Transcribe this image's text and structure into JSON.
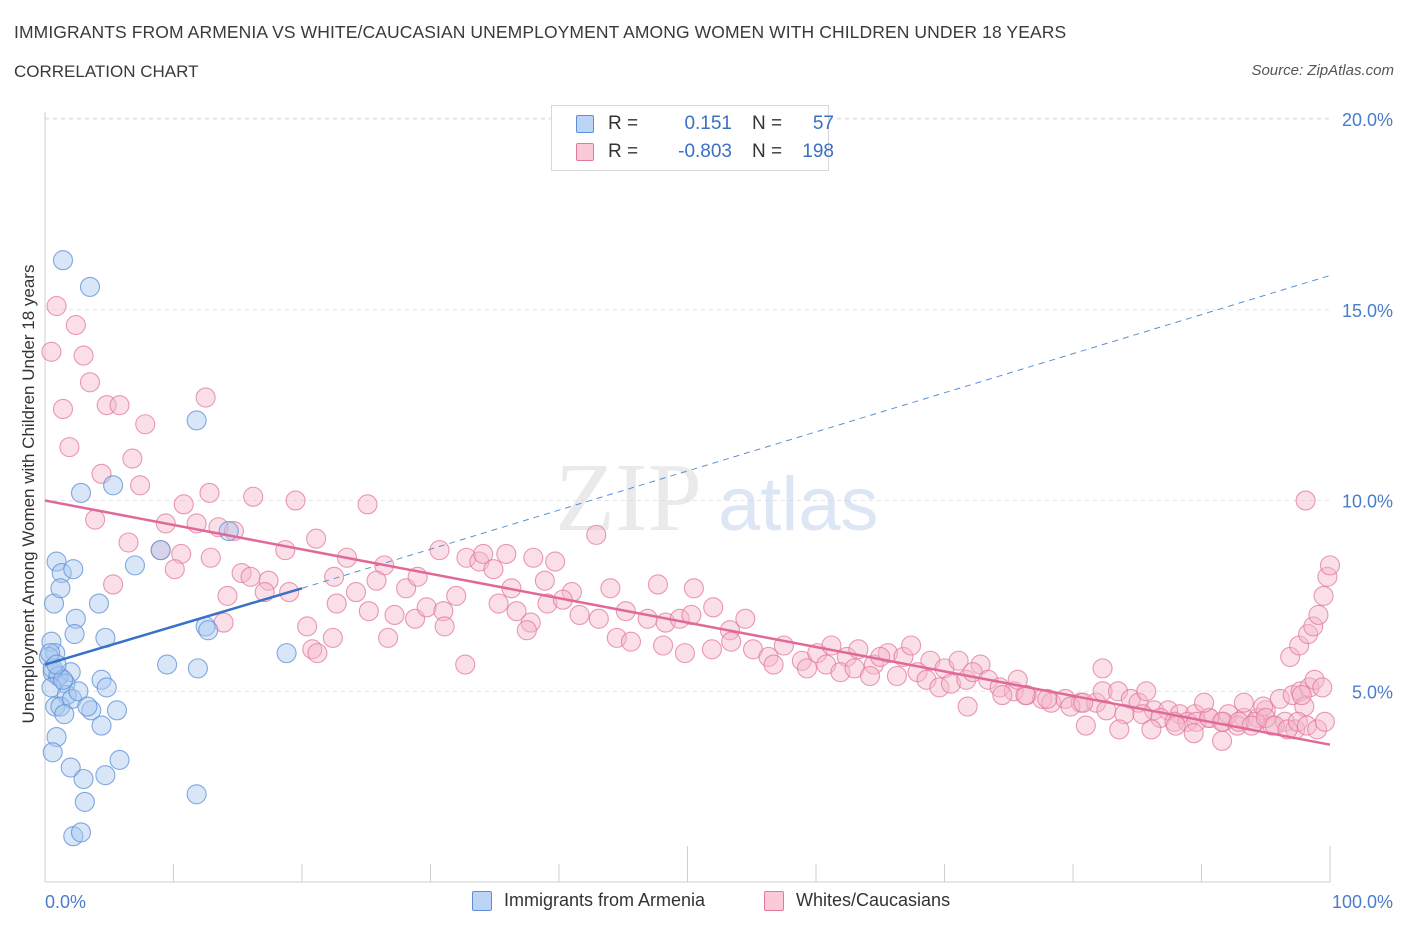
{
  "title": "IMMIGRANTS FROM ARMENIA VS WHITE/CAUCASIAN UNEMPLOYMENT AMONG WOMEN WITH CHILDREN UNDER 18 YEARS",
  "subtitle": "CORRELATION CHART",
  "source": "Source: ZipAtlas.com",
  "watermark": {
    "zip": "ZIP",
    "atlas": "atlas"
  },
  "legend": {
    "r_label": "R =",
    "n_label": "N =",
    "rows": [
      {
        "series": "Immigrants from Armenia",
        "r": "0.151",
        "n": "57",
        "color": "#a9c8f0",
        "stroke": "#5b8fd6"
      },
      {
        "series": "Whites/Caucasians",
        "r": "-0.803",
        "n": "198",
        "color": "#f5b7cb",
        "stroke": "#e3789c"
      }
    ]
  },
  "chart_data": {
    "type": "scatter",
    "title": "IMMIGRANTS FROM ARMENIA VS WHITE/CAUCASIAN UNEMPLOYMENT AMONG WOMEN WITH CHILDREN UNDER 18 YEARS",
    "xlabel": "",
    "ylabel": "Unemployment Among Women with Children Under 18 years",
    "xlim": [
      0,
      100
    ],
    "ylim": [
      0,
      20.5
    ],
    "x_tick_labels": [
      "0.0%",
      "100.0%"
    ],
    "y_ticks": [
      5,
      10,
      15,
      20
    ],
    "y_tick_labels": [
      "5.0%",
      "10.0%",
      "15.0%",
      "20.0%"
    ],
    "grid": true,
    "legend_position": "top-center",
    "series": [
      {
        "name": "Immigrants from Armenia",
        "color": "#5b8fd6",
        "fill": "#a9c8f0",
        "trend": {
          "x": [
            0,
            20
          ],
          "y": [
            5.7,
            7.7
          ],
          "extend_dashed_to": [
            100,
            15.9
          ]
        },
        "points": [
          [
            1.4,
            16.3
          ],
          [
            3.5,
            15.6
          ],
          [
            11.8,
            12.1
          ],
          [
            2.8,
            10.2
          ],
          [
            5.3,
            10.4
          ],
          [
            9.0,
            8.7
          ],
          [
            14.3,
            9.2
          ],
          [
            0.9,
            8.4
          ],
          [
            1.3,
            8.1
          ],
          [
            2.2,
            8.2
          ],
          [
            7.0,
            8.3
          ],
          [
            0.7,
            7.3
          ],
          [
            4.2,
            7.3
          ],
          [
            1.2,
            7.7
          ],
          [
            2.4,
            6.9
          ],
          [
            2.3,
            6.5
          ],
          [
            4.7,
            6.4
          ],
          [
            12.5,
            6.7
          ],
          [
            12.7,
            6.6
          ],
          [
            18.8,
            6.0
          ],
          [
            0.5,
            6.3
          ],
          [
            0.8,
            6.0
          ],
          [
            0.3,
            5.9
          ],
          [
            0.6,
            5.5
          ],
          [
            1.0,
            5.4
          ],
          [
            1.1,
            5.4
          ],
          [
            2.0,
            5.5
          ],
          [
            1.6,
            5.2
          ],
          [
            0.5,
            5.1
          ],
          [
            1.7,
            4.9
          ],
          [
            9.5,
            5.7
          ],
          [
            11.9,
            5.6
          ],
          [
            4.4,
            5.3
          ],
          [
            4.8,
            5.1
          ],
          [
            0.8,
            4.6
          ],
          [
            1.2,
            4.6
          ],
          [
            2.1,
            4.8
          ],
          [
            3.6,
            4.5
          ],
          [
            1.5,
            4.4
          ],
          [
            5.6,
            4.5
          ],
          [
            4.4,
            4.1
          ],
          [
            0.9,
            3.8
          ],
          [
            0.6,
            3.4
          ],
          [
            5.8,
            3.2
          ],
          [
            2.0,
            3.0
          ],
          [
            3.0,
            2.7
          ],
          [
            4.7,
            2.8
          ],
          [
            3.1,
            2.1
          ],
          [
            11.8,
            2.3
          ],
          [
            2.2,
            1.2
          ],
          [
            2.8,
            1.3
          ],
          [
            0.6,
            5.6
          ],
          [
            1.4,
            5.3
          ],
          [
            0.4,
            6.0
          ],
          [
            2.6,
            5.0
          ],
          [
            0.9,
            5.7
          ],
          [
            3.3,
            4.6
          ]
        ]
      },
      {
        "name": "Whites/Caucasians",
        "color": "#e3789c",
        "fill": "#f5b7cb",
        "trend": {
          "x": [
            0,
            100
          ],
          "y": [
            10.0,
            3.6
          ]
        },
        "points": [
          [
            0.9,
            15.1
          ],
          [
            2.4,
            14.6
          ],
          [
            0.5,
            13.9
          ],
          [
            3.0,
            13.8
          ],
          [
            3.5,
            13.1
          ],
          [
            1.4,
            12.4
          ],
          [
            4.8,
            12.5
          ],
          [
            5.8,
            12.5
          ],
          [
            12.5,
            12.7
          ],
          [
            7.8,
            12.0
          ],
          [
            1.9,
            11.4
          ],
          [
            6.8,
            11.1
          ],
          [
            4.4,
            10.7
          ],
          [
            7.4,
            10.4
          ],
          [
            12.8,
            10.2
          ],
          [
            16.2,
            10.1
          ],
          [
            19.5,
            10.0
          ],
          [
            25.1,
            9.9
          ],
          [
            10.8,
            9.9
          ],
          [
            3.9,
            9.5
          ],
          [
            9.4,
            9.4
          ],
          [
            11.8,
            9.4
          ],
          [
            13.5,
            9.3
          ],
          [
            14.7,
            9.2
          ],
          [
            21.1,
            9.0
          ],
          [
            6.5,
            8.9
          ],
          [
            9.0,
            8.7
          ],
          [
            12.9,
            8.5
          ],
          [
            18.7,
            8.7
          ],
          [
            23.5,
            8.5
          ],
          [
            26.4,
            8.3
          ],
          [
            30.7,
            8.7
          ],
          [
            32.8,
            8.5
          ],
          [
            33.8,
            8.4
          ],
          [
            34.1,
            8.6
          ],
          [
            35.9,
            8.6
          ],
          [
            38.0,
            8.5
          ],
          [
            39.7,
            8.4
          ],
          [
            42.9,
            9.1
          ],
          [
            10.6,
            8.6
          ],
          [
            10.1,
            8.2
          ],
          [
            15.3,
            8.1
          ],
          [
            16.0,
            8.0
          ],
          [
            17.4,
            7.9
          ],
          [
            22.5,
            8.0
          ],
          [
            25.8,
            7.9
          ],
          [
            28.1,
            7.7
          ],
          [
            29.0,
            8.0
          ],
          [
            34.9,
            8.2
          ],
          [
            36.3,
            7.7
          ],
          [
            38.9,
            7.9
          ],
          [
            41.0,
            7.6
          ],
          [
            44.0,
            7.7
          ],
          [
            47.7,
            7.8
          ],
          [
            50.5,
            7.7
          ],
          [
            5.3,
            7.8
          ],
          [
            14.2,
            7.5
          ],
          [
            17.1,
            7.6
          ],
          [
            19.0,
            7.6
          ],
          [
            22.7,
            7.3
          ],
          [
            24.2,
            7.6
          ],
          [
            25.2,
            7.1
          ],
          [
            27.2,
            7.0
          ],
          [
            28.8,
            6.9
          ],
          [
            29.7,
            7.2
          ],
          [
            31.0,
            7.1
          ],
          [
            32.0,
            7.5
          ],
          [
            35.3,
            7.3
          ],
          [
            36.7,
            7.1
          ],
          [
            37.8,
            6.8
          ],
          [
            39.1,
            7.3
          ],
          [
            40.3,
            7.4
          ],
          [
            41.6,
            7.0
          ],
          [
            43.1,
            6.9
          ],
          [
            45.2,
            7.1
          ],
          [
            46.9,
            6.9
          ],
          [
            48.3,
            6.8
          ],
          [
            49.4,
            6.9
          ],
          [
            50.3,
            7.0
          ],
          [
            52.0,
            7.2
          ],
          [
            53.3,
            6.6
          ],
          [
            54.5,
            6.9
          ],
          [
            13.9,
            6.8
          ],
          [
            20.4,
            6.7
          ],
          [
            22.4,
            6.4
          ],
          [
            26.7,
            6.4
          ],
          [
            31.1,
            6.7
          ],
          [
            37.5,
            6.6
          ],
          [
            44.5,
            6.4
          ],
          [
            45.6,
            6.3
          ],
          [
            48.1,
            6.2
          ],
          [
            49.8,
            6.0
          ],
          [
            51.9,
            6.1
          ],
          [
            53.4,
            6.3
          ],
          [
            55.1,
            6.1
          ],
          [
            56.3,
            5.9
          ],
          [
            57.5,
            6.2
          ],
          [
            58.9,
            5.8
          ],
          [
            60.1,
            6.0
          ],
          [
            61.2,
            6.2
          ],
          [
            62.4,
            5.9
          ],
          [
            63.3,
            6.1
          ],
          [
            64.5,
            5.7
          ],
          [
            65.6,
            6.0
          ],
          [
            66.8,
            5.9
          ],
          [
            67.4,
            6.2
          ],
          [
            68.9,
            5.8
          ],
          [
            70.0,
            5.6
          ],
          [
            71.1,
            5.8
          ],
          [
            72.8,
            5.7
          ],
          [
            20.8,
            6.1
          ],
          [
            21.2,
            6.0
          ],
          [
            32.7,
            5.7
          ],
          [
            56.7,
            5.7
          ],
          [
            59.3,
            5.6
          ],
          [
            60.8,
            5.7
          ],
          [
            61.9,
            5.5
          ],
          [
            63.0,
            5.6
          ],
          [
            64.2,
            5.4
          ],
          [
            65.0,
            5.9
          ],
          [
            66.3,
            5.4
          ],
          [
            67.9,
            5.5
          ],
          [
            68.6,
            5.3
          ],
          [
            69.6,
            5.1
          ],
          [
            70.5,
            5.2
          ],
          [
            71.7,
            5.3
          ],
          [
            72.2,
            5.5
          ],
          [
            73.4,
            5.3
          ],
          [
            74.3,
            5.1
          ],
          [
            75.4,
            5.0
          ],
          [
            76.4,
            4.9
          ],
          [
            77.6,
            4.8
          ],
          [
            78.3,
            4.7
          ],
          [
            79.4,
            4.8
          ],
          [
            80.6,
            4.7
          ],
          [
            81.8,
            4.7
          ],
          [
            82.3,
            5.0
          ],
          [
            83.5,
            5.0
          ],
          [
            84.5,
            4.8
          ],
          [
            85.1,
            4.7
          ],
          [
            86.3,
            4.5
          ],
          [
            87.4,
            4.5
          ],
          [
            88.3,
            4.4
          ],
          [
            89.5,
            4.4
          ],
          [
            90.6,
            4.3
          ],
          [
            91.7,
            4.2
          ],
          [
            92.1,
            4.4
          ],
          [
            93.3,
            4.3
          ],
          [
            94.4,
            4.3
          ],
          [
            95.0,
            4.5
          ],
          [
            71.8,
            4.6
          ],
          [
            74.5,
            4.9
          ],
          [
            76.3,
            4.9
          ],
          [
            78.0,
            4.8
          ],
          [
            79.8,
            4.6
          ],
          [
            80.8,
            4.7
          ],
          [
            82.6,
            4.5
          ],
          [
            84.0,
            4.4
          ],
          [
            85.4,
            4.4
          ],
          [
            86.8,
            4.3
          ],
          [
            87.9,
            4.2
          ],
          [
            88.9,
            4.2
          ],
          [
            89.6,
            4.2
          ],
          [
            90.6,
            4.3
          ],
          [
            91.6,
            4.2
          ],
          [
            92.8,
            4.1
          ],
          [
            94.2,
            4.2
          ],
          [
            95.5,
            4.1
          ],
          [
            96.5,
            4.2
          ],
          [
            97.3,
            4.0
          ],
          [
            75.7,
            5.3
          ],
          [
            82.3,
            5.6
          ],
          [
            85.7,
            5.0
          ],
          [
            90.2,
            4.7
          ],
          [
            93.3,
            4.7
          ],
          [
            94.8,
            4.6
          ],
          [
            96.1,
            4.8
          ],
          [
            97.1,
            4.9
          ],
          [
            97.7,
            5.0
          ],
          [
            98.4,
            5.1
          ],
          [
            98.8,
            5.3
          ],
          [
            99.4,
            5.1
          ],
          [
            98.0,
            4.6
          ],
          [
            97.8,
            4.9
          ],
          [
            96.9,
            5.9
          ],
          [
            97.6,
            6.2
          ],
          [
            98.3,
            6.5
          ],
          [
            98.7,
            6.7
          ],
          [
            99.1,
            7.0
          ],
          [
            99.5,
            7.5
          ],
          [
            99.8,
            8.0
          ],
          [
            100.0,
            8.3
          ],
          [
            98.1,
            10.0
          ],
          [
            81.0,
            4.1
          ],
          [
            83.6,
            4.0
          ],
          [
            86.1,
            4.0
          ],
          [
            88.0,
            4.1
          ],
          [
            89.4,
            3.9
          ],
          [
            91.6,
            3.7
          ],
          [
            92.9,
            4.2
          ],
          [
            93.9,
            4.1
          ],
          [
            95.0,
            4.3
          ],
          [
            95.7,
            4.1
          ],
          [
            96.7,
            4.0
          ],
          [
            97.5,
            4.2
          ],
          [
            98.2,
            4.1
          ],
          [
            99.0,
            4.0
          ],
          [
            99.6,
            4.2
          ]
        ]
      }
    ]
  }
}
